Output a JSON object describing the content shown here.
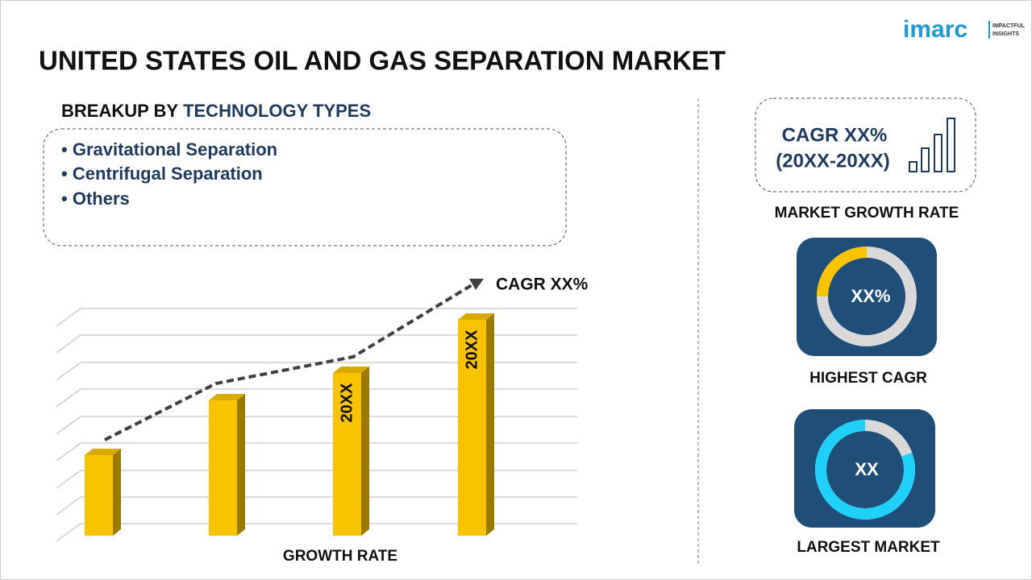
{
  "logo": {
    "name": "imarc",
    "tagline": [
      "IMPACTFUL",
      "INSIGHTS"
    ]
  },
  "header": {
    "title": "UNITED STATES OIL AND GAS SEPARATION MARKET"
  },
  "breakup": {
    "heading": {
      "prefix": "BREAKUP BY",
      "emphasis": "TECHNOLOGY TYPES"
    },
    "items": [
      "Gravitational Separation",
      "Centrifugal Separation",
      "Others"
    ]
  },
  "growth_chart": {
    "cagr_label": "CAGR XX%",
    "bar_labels": [
      "20XX",
      "20XX"
    ],
    "axis_label": "GROWTH RATE"
  },
  "market_growth": {
    "cagr": "CAGR XX%",
    "period": "(20XX-20XX)",
    "caption": "MARKET GROWTH RATE"
  },
  "highest_cagr": {
    "value": "XX%",
    "caption": "HIGHEST CAGR"
  },
  "largest_market": {
    "value": "XX",
    "caption": "LARGEST MARKET"
  }
}
